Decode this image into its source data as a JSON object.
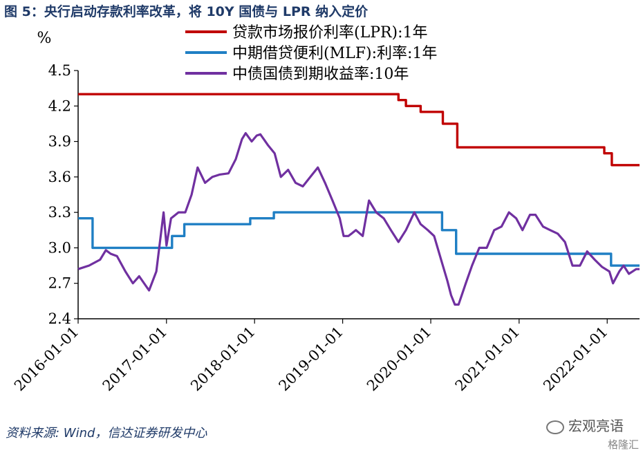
{
  "figure_title": "图 5：央行启动存款利率改革，将 10Y 国债与 LPR 纳入定价",
  "source": "资料来源: Wind，信达证券研发中心",
  "watermark": "宏观亮语",
  "logo_text": "格隆汇",
  "colors": {
    "lpr": "#c00000",
    "mlf": "#1f7fc4",
    "cgb": "#7030a0",
    "title": "#1f3a68"
  },
  "chart_data": {
    "type": "line",
    "ylabel": "%",
    "ylim": [
      2.4,
      4.5
    ],
    "yticks": [
      "4.5",
      "4.2",
      "3.9",
      "3.6",
      "3.3",
      "3.0",
      "2.7",
      "2.4"
    ],
    "ytick_values": [
      4.5,
      4.2,
      3.9,
      3.6,
      3.3,
      3.0,
      2.7,
      2.4
    ],
    "xlim": [
      "2016-01-01",
      "2022-05-15"
    ],
    "xticks": [
      "2016-01-01",
      "2017-01-01",
      "2018-01-01",
      "2019-01-01",
      "2020-01-01",
      "2021-01-01",
      "2022-01-01"
    ],
    "grid": false,
    "legend_position": "top-center",
    "series": [
      {
        "name": "贷款市场报价利率(LPR):1年",
        "step": true,
        "points": [
          [
            "2016-01-01",
            4.3
          ],
          [
            "2019-08-20",
            4.25
          ],
          [
            "2019-09-20",
            4.2
          ],
          [
            "2019-11-20",
            4.15
          ],
          [
            "2020-02-20",
            4.05
          ],
          [
            "2020-04-20",
            3.85
          ],
          [
            "2021-12-20",
            3.8
          ],
          [
            "2022-01-20",
            3.7
          ],
          [
            "2022-05-15",
            3.7
          ]
        ]
      },
      {
        "name": "中期借贷便利(MLF):利率:1年",
        "step": true,
        "points": [
          [
            "2016-01-01",
            3.25
          ],
          [
            "2016-03-01",
            3.0
          ],
          [
            "2017-01-24",
            3.1
          ],
          [
            "2017-03-16",
            3.2
          ],
          [
            "2017-12-14",
            3.25
          ],
          [
            "2018-03-22",
            3.3
          ],
          [
            "2020-02-17",
            3.15
          ],
          [
            "2020-04-15",
            2.95
          ],
          [
            "2022-01-17",
            2.85
          ],
          [
            "2022-05-15",
            2.85
          ]
        ]
      },
      {
        "name": "中债国债到期收益率:10年",
        "step": false,
        "points": [
          [
            "2016-01-01",
            2.82
          ],
          [
            "2016-02-15",
            2.85
          ],
          [
            "2016-04-01",
            2.9
          ],
          [
            "2016-04-25",
            2.98
          ],
          [
            "2016-05-15",
            2.95
          ],
          [
            "2016-06-10",
            2.93
          ],
          [
            "2016-07-15",
            2.8
          ],
          [
            "2016-08-15",
            2.7
          ],
          [
            "2016-09-10",
            2.76
          ],
          [
            "2016-10-21",
            2.64
          ],
          [
            "2016-11-20",
            2.8
          ],
          [
            "2016-12-20",
            3.3
          ],
          [
            "2017-01-01",
            3.02
          ],
          [
            "2017-01-20",
            3.25
          ],
          [
            "2017-02-20",
            3.3
          ],
          [
            "2017-03-20",
            3.3
          ],
          [
            "2017-04-15",
            3.45
          ],
          [
            "2017-05-10",
            3.68
          ],
          [
            "2017-06-10",
            3.55
          ],
          [
            "2017-07-10",
            3.6
          ],
          [
            "2017-08-10",
            3.62
          ],
          [
            "2017-09-15",
            3.63
          ],
          [
            "2017-10-15",
            3.75
          ],
          [
            "2017-11-10",
            3.92
          ],
          [
            "2017-11-25",
            3.97
          ],
          [
            "2017-12-20",
            3.9
          ],
          [
            "2018-01-10",
            3.95
          ],
          [
            "2018-01-25",
            3.96
          ],
          [
            "2018-02-25",
            3.87
          ],
          [
            "2018-03-25",
            3.8
          ],
          [
            "2018-04-20",
            3.6
          ],
          [
            "2018-05-20",
            3.66
          ],
          [
            "2018-06-20",
            3.55
          ],
          [
            "2018-07-20",
            3.52
          ],
          [
            "2018-08-20",
            3.6
          ],
          [
            "2018-09-20",
            3.68
          ],
          [
            "2018-10-20",
            3.55
          ],
          [
            "2018-11-20",
            3.4
          ],
          [
            "2018-12-20",
            3.25
          ],
          [
            "2019-01-05",
            3.1
          ],
          [
            "2019-01-25",
            3.1
          ],
          [
            "2019-02-25",
            3.15
          ],
          [
            "2019-03-25",
            3.1
          ],
          [
            "2019-04-20",
            3.4
          ],
          [
            "2019-05-20",
            3.3
          ],
          [
            "2019-06-20",
            3.25
          ],
          [
            "2019-07-20",
            3.15
          ],
          [
            "2019-08-20",
            3.05
          ],
          [
            "2019-09-20",
            3.15
          ],
          [
            "2019-10-25",
            3.3
          ],
          [
            "2019-11-20",
            3.2
          ],
          [
            "2019-12-20",
            3.15
          ],
          [
            "2020-01-15",
            3.1
          ],
          [
            "2020-02-20",
            2.85
          ],
          [
            "2020-03-10",
            2.72
          ],
          [
            "2020-03-25",
            2.6
          ],
          [
            "2020-04-10",
            2.52
          ],
          [
            "2020-04-25",
            2.52
          ],
          [
            "2020-05-25",
            2.7
          ],
          [
            "2020-06-20",
            2.85
          ],
          [
            "2020-07-20",
            3.0
          ],
          [
            "2020-08-20",
            3.0
          ],
          [
            "2020-09-20",
            3.15
          ],
          [
            "2020-10-20",
            3.18
          ],
          [
            "2020-11-20",
            3.3
          ],
          [
            "2020-12-20",
            3.25
          ],
          [
            "2021-01-15",
            3.15
          ],
          [
            "2021-02-15",
            3.28
          ],
          [
            "2021-03-10",
            3.28
          ],
          [
            "2021-04-10",
            3.18
          ],
          [
            "2021-05-10",
            3.15
          ],
          [
            "2021-06-10",
            3.12
          ],
          [
            "2021-07-10",
            3.05
          ],
          [
            "2021-08-10",
            2.85
          ],
          [
            "2021-09-10",
            2.85
          ],
          [
            "2021-10-10",
            2.97
          ],
          [
            "2021-11-10",
            2.9
          ],
          [
            "2021-12-10",
            2.84
          ],
          [
            "2022-01-10",
            2.8
          ],
          [
            "2022-01-25",
            2.7
          ],
          [
            "2022-02-20",
            2.8
          ],
          [
            "2022-03-10",
            2.85
          ],
          [
            "2022-04-01",
            2.78
          ],
          [
            "2022-05-01",
            2.82
          ],
          [
            "2022-05-15",
            2.82
          ]
        ]
      }
    ]
  }
}
